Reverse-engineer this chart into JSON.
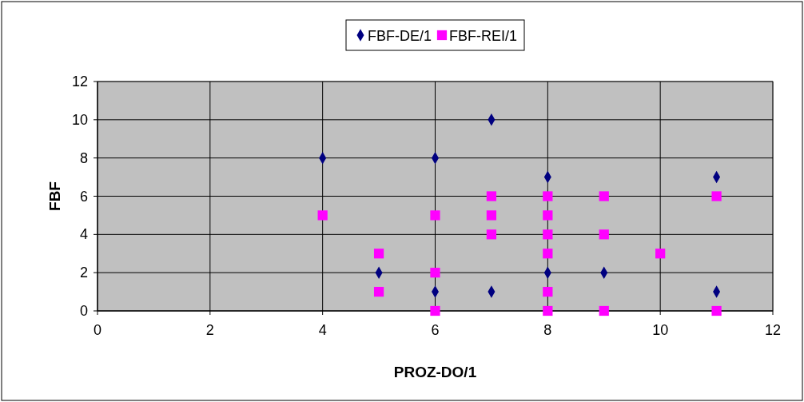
{
  "chart_data": {
    "type": "scatter",
    "xlabel": "PROZ-DO/1",
    "ylabel": "FBF",
    "xlim": [
      0,
      12
    ],
    "ylim": [
      0,
      12
    ],
    "xticks": [
      0,
      2,
      4,
      6,
      8,
      10,
      12
    ],
    "yticks": [
      0,
      2,
      4,
      6,
      8,
      10,
      12
    ],
    "grid": true,
    "legend": "top",
    "series": [
      {
        "name": "FBF-DE/1",
        "color": "#000080",
        "marker": "diamond",
        "x": [
          4,
          6,
          7,
          8,
          11,
          5,
          6,
          7,
          8,
          9,
          11
        ],
        "values": [
          8,
          8,
          10,
          7,
          7,
          2,
          1,
          1,
          2,
          2,
          1
        ]
      },
      {
        "name": "FBF-REI/1",
        "color": "#ff00ff",
        "marker": "square",
        "x": [
          4,
          5,
          5,
          6,
          6,
          6,
          7,
          7,
          7,
          8,
          8,
          8,
          8,
          8,
          8,
          9,
          9,
          9,
          10,
          11,
          11
        ],
        "values": [
          5,
          3,
          1,
          5,
          2,
          0,
          6,
          5,
          4,
          6,
          5,
          4,
          3,
          1,
          0,
          6,
          4,
          0,
          3,
          6,
          0
        ]
      }
    ]
  }
}
